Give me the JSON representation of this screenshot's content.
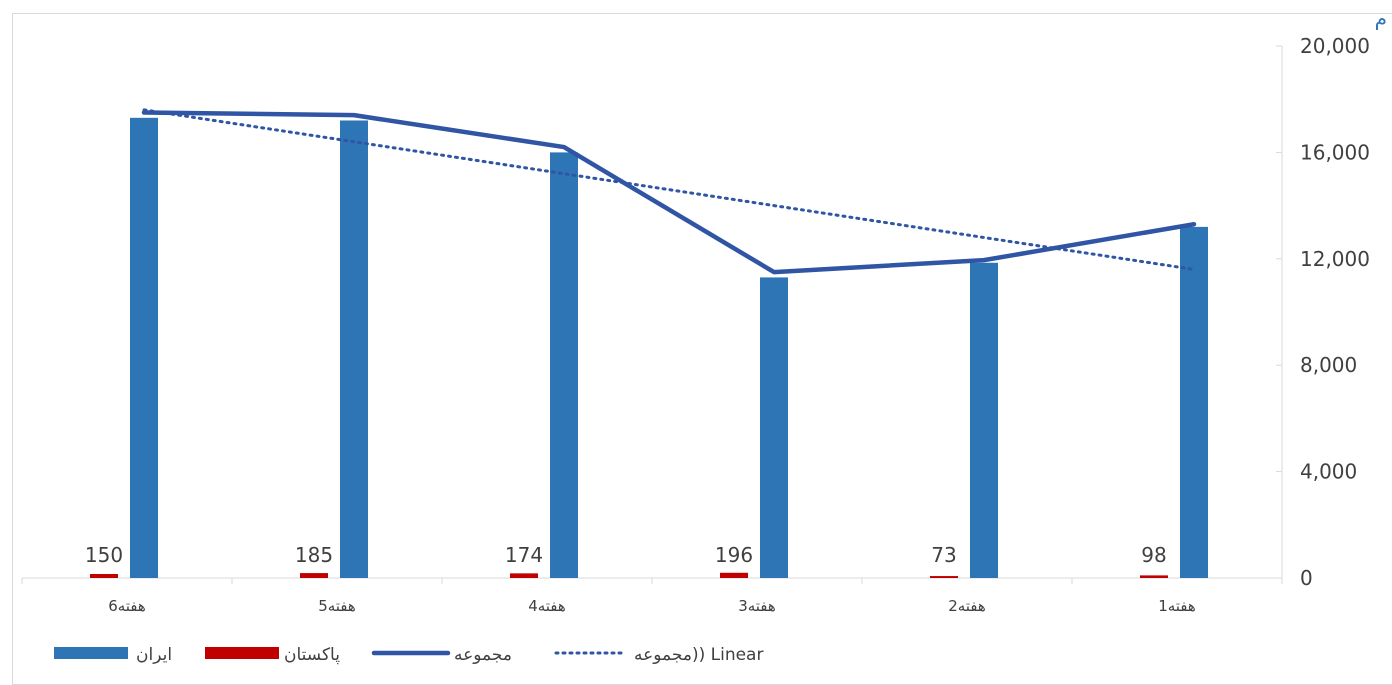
{
  "title_fragment": "م",
  "chart_data": {
    "type": "bar",
    "categories": [
      "هفته6",
      "هفته5",
      "هفته4",
      "هفته3",
      "هفته2",
      "هفته1"
    ],
    "series": [
      {
        "name": "ایران",
        "type": "bar",
        "color": "#2e75b6",
        "values": [
          17300,
          17200,
          16000,
          11300,
          11850,
          13200
        ]
      },
      {
        "name": "پاکستان",
        "type": "bar",
        "color": "#c00000",
        "values": [
          150,
          185,
          174,
          196,
          73,
          98
        ],
        "data_labels": [
          "150",
          "185",
          "174",
          "196",
          "73",
          "98"
        ]
      },
      {
        "name": "مجموعه",
        "type": "line",
        "color": "#2f55a4",
        "values": [
          17500,
          17400,
          16200,
          11500,
          11950,
          13300
        ]
      },
      {
        "name": "مجموعه)) Linear",
        "type": "trendline",
        "color": "#2f55a4",
        "values": [
          17600,
          16400,
          15200,
          14000,
          12800,
          11600
        ]
      }
    ],
    "yaxis": {
      "position": "right",
      "ticks": [
        "0",
        "4,000",
        "8,000",
        "12,000",
        "16,000",
        "20,000"
      ],
      "ylim": [
        0,
        20000
      ]
    },
    "grid": false,
    "legend": "bottom"
  }
}
